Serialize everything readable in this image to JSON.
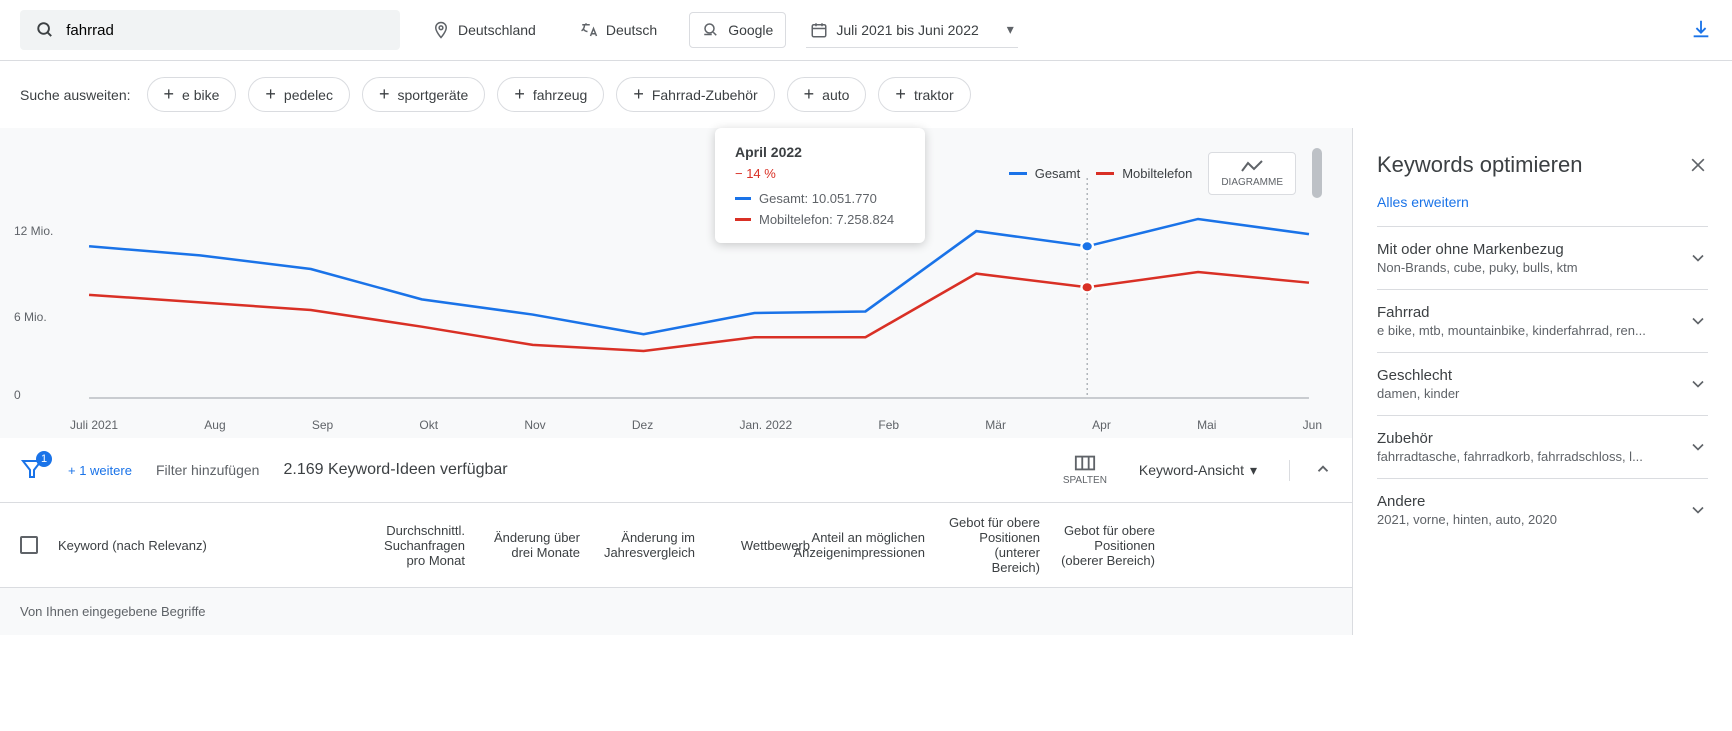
{
  "search": {
    "value": "fahrrad"
  },
  "filters": {
    "location": "Deutschland",
    "language": "Deutsch",
    "network": "Google",
    "dateRange": "Juli 2021 bis Juni 2022"
  },
  "expand": {
    "label": "Suche ausweiten:",
    "suggestions": [
      "e bike",
      "pedelec",
      "sportgeräte",
      "fahrzeug",
      "Fahrrad-Zubehör",
      "auto",
      "traktor"
    ]
  },
  "chart": {
    "type": "line",
    "yLabels": [
      "12 Mio.",
      "6 Mio.",
      "0"
    ],
    "xLabels": [
      "Juli 2021",
      "Aug",
      "Sep",
      "Okt",
      "Nov",
      "Dez",
      "Jan. 2022",
      "Feb",
      "Mär",
      "Apr",
      "Mai",
      "Jun"
    ],
    "legend": [
      {
        "label": "Gesamt",
        "color": "#1a73e8"
      },
      {
        "label": "Mobiltelefon",
        "color": "#d93025"
      }
    ],
    "diagrammeLabel": "DIAGRAMME",
    "series": {
      "gesamt": {
        "color": "#1a73e8",
        "values": [
          10.0,
          9.4,
          8.5,
          6.5,
          5.5,
          4.2,
          5.6,
          5.7,
          11.0,
          10.0,
          11.8,
          10.8
        ]
      },
      "mobil": {
        "color": "#d93025",
        "values": [
          6.8,
          6.3,
          5.8,
          4.7,
          3.5,
          3.1,
          4.0,
          4.0,
          8.2,
          7.3,
          8.3,
          7.6
        ]
      }
    },
    "yMax": 14.5,
    "highlightIndex": 9,
    "background": "#f8f9fa"
  },
  "tooltip": {
    "title": "April 2022",
    "delta": "− 14 %",
    "rows": [
      {
        "label": "Gesamt: 10.051.770",
        "color": "#1a73e8"
      },
      {
        "label": "Mobiltelefon: 7.258.824",
        "color": "#d93025"
      }
    ]
  },
  "filterBar": {
    "badge": "1",
    "more": "+ 1 weitere",
    "addFilter": "Filter hinzufügen",
    "count": "2.169 Keyword-Ideen verfügbar",
    "spalten": "SPALTEN",
    "view": "Keyword-Ansicht"
  },
  "table": {
    "headers": [
      "Keyword (nach Relevanz)",
      "Durchschnittl. Suchanfragen pro Monat",
      "Änderung über drei Monate",
      "Änderung im Jahresvergleich",
      "Wettbewerb",
      "Anteil an möglichen Anzeigenimpressionen",
      "Gebot für obere Positionen (unterer Bereich)",
      "Gebot für obere Positionen (oberer Bereich)"
    ],
    "sectionLabel": "Von Ihnen eingegebene Begriffe"
  },
  "rightPanel": {
    "title": "Keywords optimieren",
    "expandAll": "Alles erweitern",
    "categories": [
      {
        "title": "Mit oder ohne Markenbezug",
        "sub": "Non-Brands, cube, puky, bulls, ktm"
      },
      {
        "title": "Fahrrad",
        "sub": "e bike, mtb, mountainbike, kinderfahrrad, ren..."
      },
      {
        "title": "Geschlecht",
        "sub": "damen, kinder"
      },
      {
        "title": "Zubehör",
        "sub": "fahrradtasche, fahrradkorb, fahrradschloss, l..."
      },
      {
        "title": "Andere",
        "sub": "2021, vorne, hinten, auto, 2020"
      }
    ]
  }
}
